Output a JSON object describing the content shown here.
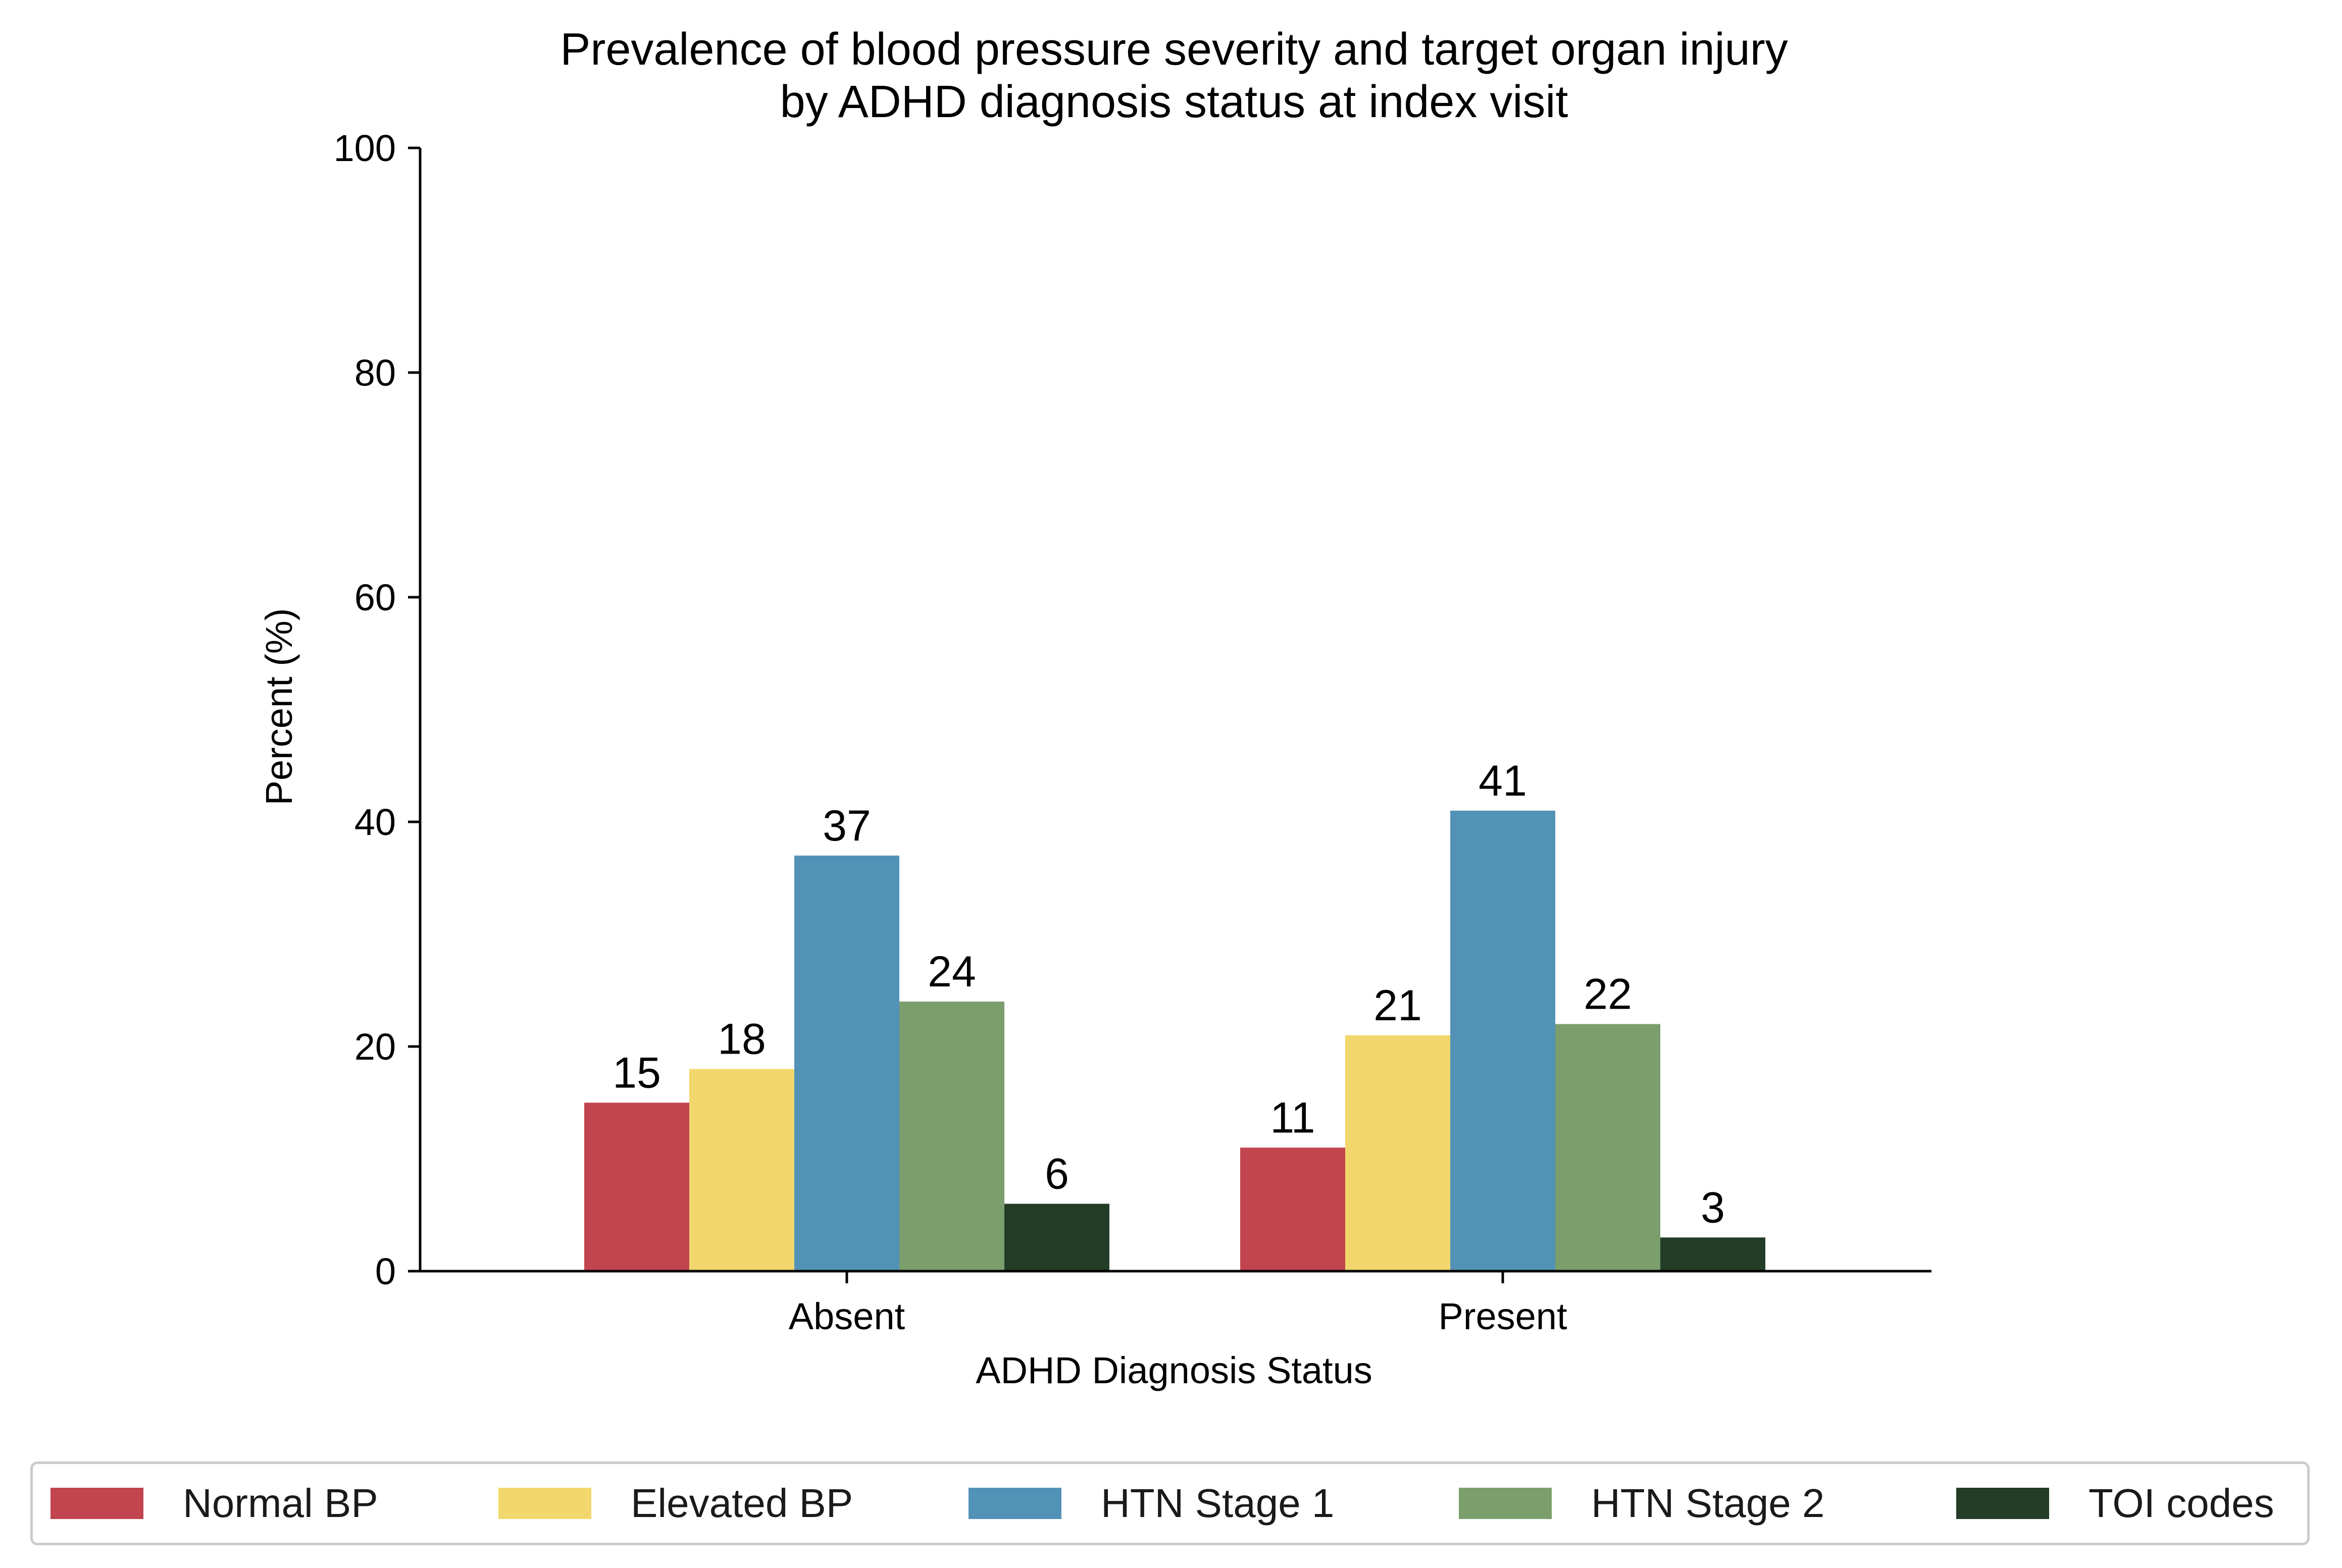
{
  "chart_data": {
    "type": "bar",
    "title": [
      "Prevalence of blood pressure severity and target organ injury",
      "by ADHD diagnosis status at index visit"
    ],
    "xlabel": "ADHD Diagnosis Status",
    "ylabel": "Percent (%)",
    "ylim": [
      0,
      100
    ],
    "yticks": [
      "0",
      "20",
      "40",
      "60",
      "80",
      "100"
    ],
    "categories": [
      "Absent",
      "Present"
    ],
    "series": [
      {
        "name": "Normal BP",
        "color": "#c1444f",
        "values": [
          15,
          11
        ]
      },
      {
        "name": "Elevated BP",
        "color": "#f2d86c",
        "values": [
          18,
          21
        ]
      },
      {
        "name": "HTN Stage 1",
        "color": "#5392b7",
        "values": [
          37,
          41
        ]
      },
      {
        "name": "HTN Stage 2",
        "color": "#7b9e6d",
        "values": [
          24,
          22
        ]
      },
      {
        "name": "TOI codes",
        "color": "#233d27",
        "values": [
          6,
          3
        ]
      }
    ],
    "data_labels": [
      [
        "15",
        "11"
      ],
      [
        "18",
        "21"
      ],
      [
        "37",
        "41"
      ],
      [
        "24",
        "22"
      ],
      [
        "6",
        "3"
      ]
    ],
    "grid": false,
    "legend_position": "bottom"
  }
}
